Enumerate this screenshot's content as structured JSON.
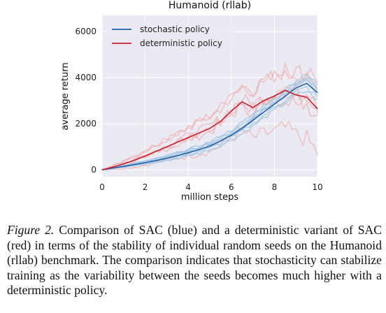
{
  "chart_data": {
    "type": "line",
    "title": "Humanoid (rllab)",
    "xlabel": "million steps",
    "ylabel": "average return",
    "xlim": [
      0,
      10
    ],
    "ylim": [
      -300,
      6700
    ],
    "xticks": [
      0,
      2,
      4,
      6,
      8,
      10
    ],
    "yticks": [
      0,
      2000,
      4000,
      6000
    ],
    "grid": true,
    "legend_position": "top-left",
    "series": [
      {
        "name": "stochastic policy",
        "color": "#1f5fa8",
        "x": [
          0,
          0.5,
          1,
          1.5,
          2,
          2.5,
          3,
          3.5,
          4,
          4.5,
          5,
          5.5,
          6,
          6.5,
          7,
          7.5,
          8,
          8.5,
          9,
          9.5,
          10
        ],
        "values": [
          0,
          80,
          150,
          230,
          310,
          400,
          500,
          620,
          740,
          880,
          1030,
          1250,
          1500,
          1800,
          2150,
          2500,
          2850,
          3200,
          3550,
          3750,
          3350
        ]
      },
      {
        "name": "deterministic policy",
        "color": "#c81e2a",
        "x": [
          0,
          0.5,
          1,
          1.5,
          2,
          2.5,
          3,
          3.5,
          4,
          4.5,
          5,
          5.5,
          6,
          6.5,
          7,
          7.5,
          8,
          8.5,
          9,
          9.5,
          10
        ],
        "values": [
          0,
          120,
          260,
          420,
          600,
          800,
          1000,
          1200,
          1400,
          1600,
          1800,
          2100,
          2550,
          2950,
          2700,
          3000,
          3200,
          3450,
          3250,
          3150,
          2650
        ]
      }
    ],
    "seed_colors": {
      "stochastic": "#9ec4e2",
      "deterministic": "#f0a0a4"
    }
  },
  "caption": {
    "label": "Figure 2.",
    "text": " Comparison of SAC (blue) and a deterministic variant of SAC (red) in terms of the stability of individual random seeds on the Humanoid (rllab) benchmark. The comparison indicates that stochasticity can stabilize training as the variability between the seeds becomes much higher with a deterministic policy."
  }
}
